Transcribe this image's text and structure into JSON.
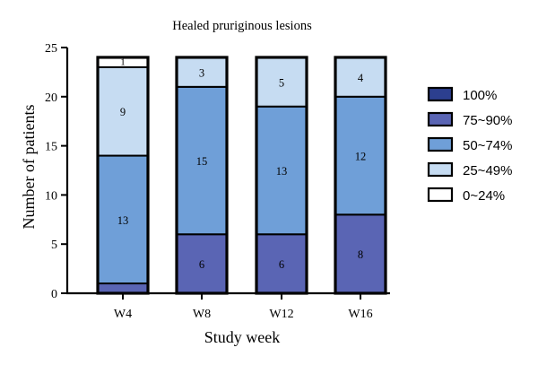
{
  "chart_data": {
    "type": "bar",
    "stacked": true,
    "title": "Healed pruriginous lesions",
    "xlabel": "Study week",
    "ylabel": "Number of patients",
    "categories": [
      "W4",
      "W8",
      "W12",
      "W16"
    ],
    "ylim": [
      0,
      25
    ],
    "yticks": [
      0,
      5,
      10,
      15,
      20,
      25
    ],
    "legend_position": "right",
    "series": [
      {
        "name": "100%",
        "color": "#2c3f8f",
        "values": [
          0,
          0,
          0,
          0
        ]
      },
      {
        "name": "75~90%",
        "color": "#5a65b4",
        "values": [
          1,
          6,
          6,
          8
        ]
      },
      {
        "name": "50~74%",
        "color": "#6f9fd8",
        "values": [
          13,
          15,
          13,
          12
        ]
      },
      {
        "name": "25~49%",
        "color": "#c6dcf2",
        "values": [
          9,
          3,
          5,
          4
        ]
      },
      {
        "name": "0~24%",
        "color": "#ffffff",
        "values": [
          1,
          0,
          0,
          0
        ]
      }
    ],
    "segment_labels": [
      [
        null,
        "6",
        "6",
        "8"
      ],
      [
        "13",
        "15",
        "13",
        "12"
      ],
      [
        "9",
        "3",
        "5",
        "4"
      ],
      [
        "1",
        null,
        null,
        null
      ]
    ]
  }
}
